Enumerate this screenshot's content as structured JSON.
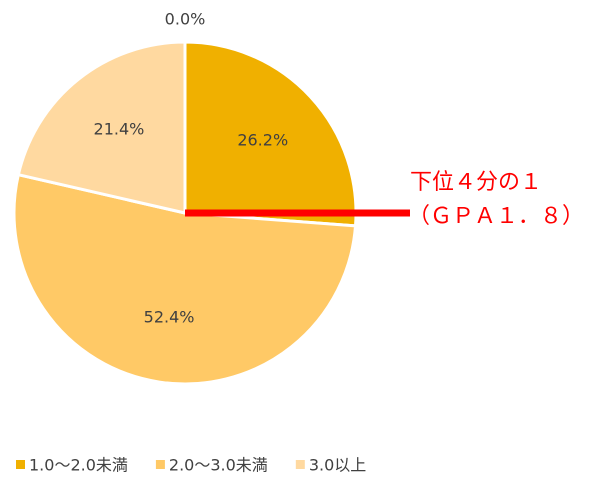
{
  "chart_data": {
    "type": "pie",
    "categories": [
      null,
      "1.0〜2.0未満",
      "2.0〜3.0未満",
      "3.0以上"
    ],
    "values": [
      0,
      26.2,
      52.4,
      21.4
    ],
    "value_labels": [
      "0.0%",
      "26.2%",
      "52.4%",
      "21.4%"
    ],
    "colors": [
      "#e6a000",
      "#f0b000",
      "#ffc966",
      "#ffd9a0"
    ],
    "legend": "bottom",
    "annotation": {
      "lines": [
        "下位４分の１",
        "（ＧＰＡ１．８）"
      ],
      "color": "#ff0000"
    }
  }
}
